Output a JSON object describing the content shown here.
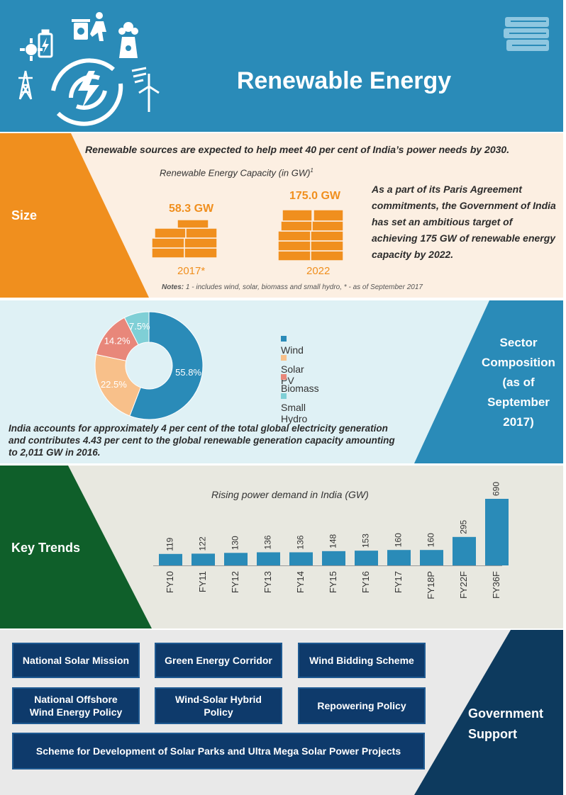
{
  "header": {
    "title": "Renewable Energy",
    "icons": [
      "battery-icon",
      "sun-icon",
      "recycle-bin-icon",
      "person-icon",
      "nuclear-plant-icon",
      "power-tower-icon",
      "lightning-bolt-icon",
      "wind-turbine-icon",
      "wind-icon",
      "books-icon"
    ]
  },
  "size": {
    "label": "Size",
    "headline": "Renewable sources are expected to help meet 40 per cent of India’s power needs by 2030.",
    "capacity_title": "Renewable Energy Capacity (in GW)",
    "capacity_title_note": "1",
    "items": [
      {
        "value": "58.3 GW",
        "year": "2017*"
      },
      {
        "value": "175.0 GW",
        "year": "2022"
      }
    ],
    "paris_text": "As a part of its Paris Agreement commitments, the Government of India has set an ambitious target of achieving 175 GW of renewable energy capacity by 2022.",
    "notes_label": "Notes:",
    "notes_text": " 1 - includes wind, solar, biomass and small hydro, * - as of September 2017",
    "colors": {
      "accent": "#f08f1e",
      "background": "#fcefe2"
    }
  },
  "sector": {
    "label_lines": [
      "Sector",
      "Composition",
      "(as of",
      "September",
      "2017)"
    ],
    "text": "India accounts for approximately 4 per cent of the total global electricity generation and contributes 4.43 per cent to the global renewable generation capacity  amounting  to 2,011 GW  in  2016.",
    "colors": {
      "accent": "#2a8bb8",
      "background": "#dff1f5"
    }
  },
  "trends": {
    "label": "Key Trends",
    "colors": {
      "accent": "#0f5f2a",
      "bar": "#2a8bb8",
      "background": "#e8e8e0"
    }
  },
  "government": {
    "label_lines": [
      "Government",
      "Support"
    ],
    "buttons": [
      "National Solar Mission",
      "Green Energy Corridor",
      "Wind Bidding Scheme",
      "National Offshore Wind Energy Policy",
      "Wind-Solar Hybrid Policy",
      "Repowering Policy",
      "Scheme for Development of Solar Parks and Ultra Mega Solar Power Projects"
    ],
    "colors": {
      "button": "#0e3a6b",
      "accent": "#0d3a5e"
    }
  },
  "chart_data": [
    {
      "type": "pie",
      "title": "",
      "categories": [
        "Wind",
        "Solar PV",
        "Biomass",
        "Small Hydro"
      ],
      "values": [
        55.8,
        22.5,
        14.2,
        7.5
      ],
      "labels": [
        "55.8%",
        "22.5%",
        "14.2%",
        "7.5%"
      ],
      "colors": [
        "#2a8bb8",
        "#f8c08a",
        "#e8877a",
        "#7fcfd6"
      ],
      "legend": "right"
    },
    {
      "type": "bar",
      "title": "Rising power demand in India (GW)",
      "categories": [
        "FY10",
        "FY11",
        "FY12",
        "FY13",
        "FY14",
        "FY15",
        "FY16",
        "FY17",
        "FY18P",
        "FY22F",
        "FY36F"
      ],
      "values": [
        119,
        122,
        130,
        136,
        136,
        148,
        153,
        160,
        160,
        295,
        690
      ],
      "xlabel": "",
      "ylabel": "",
      "grid": false
    }
  ]
}
